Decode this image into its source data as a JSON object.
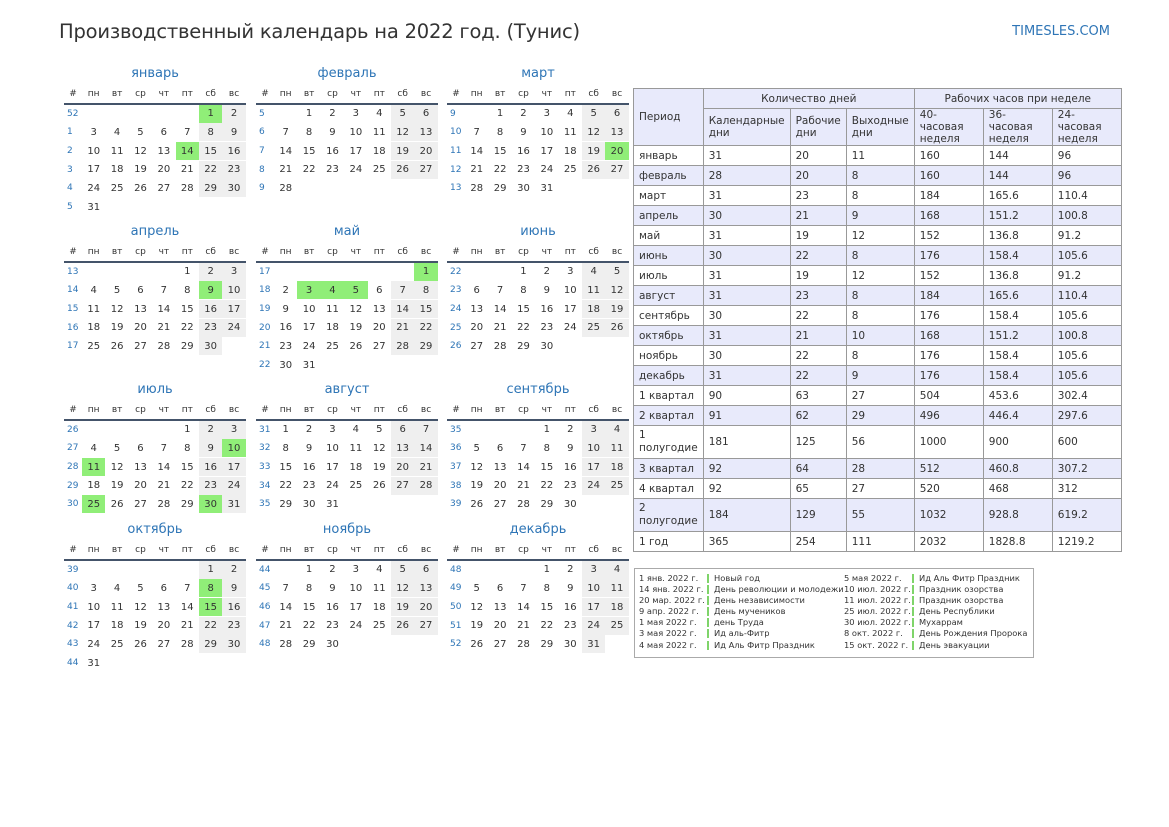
{
  "title": "Производственный календарь на 2022 год. (Тунис)",
  "site": "TIMESLES.COM",
  "weekday_headers": [
    "#",
    "пн",
    "вт",
    "ср",
    "чт",
    "пт",
    "сб",
    "вс"
  ],
  "colors": {
    "accent": "#2e75b6",
    "holiday": "#90ee78",
    "weekend": "#efefef",
    "table_header": "#e8eafb"
  },
  "months": [
    {
      "name": "январь",
      "offset": 5,
      "days": 31,
      "weeks": [
        52,
        1,
        2,
        3,
        4,
        5
      ],
      "holidays": [
        1,
        14
      ]
    },
    {
      "name": "февраль",
      "offset": 1,
      "days": 28,
      "weeks": [
        5,
        6,
        7,
        8,
        9
      ],
      "holidays": []
    },
    {
      "name": "март",
      "offset": 1,
      "days": 31,
      "weeks": [
        9,
        10,
        11,
        12,
        13
      ],
      "holidays": [
        20
      ]
    },
    {
      "name": "апрель",
      "offset": 4,
      "days": 30,
      "weeks": [
        13,
        14,
        15,
        16,
        17
      ],
      "holidays": [
        9
      ]
    },
    {
      "name": "май",
      "offset": 6,
      "days": 31,
      "weeks": [
        17,
        18,
        19,
        20,
        21,
        22
      ],
      "holidays": [
        1,
        3,
        4,
        5
      ]
    },
    {
      "name": "июнь",
      "offset": 2,
      "days": 30,
      "weeks": [
        22,
        23,
        24,
        25,
        26
      ],
      "holidays": []
    },
    {
      "name": "июль",
      "offset": 4,
      "days": 31,
      "weeks": [
        26,
        27,
        28,
        29,
        30
      ],
      "holidays": [
        10,
        11,
        25,
        30
      ]
    },
    {
      "name": "август",
      "offset": 0,
      "days": 31,
      "weeks": [
        31,
        32,
        33,
        34,
        35
      ],
      "holidays": []
    },
    {
      "name": "сентябрь",
      "offset": 3,
      "days": 30,
      "weeks": [
        35,
        36,
        37,
        38,
        39
      ],
      "holidays": []
    },
    {
      "name": "октябрь",
      "offset": 5,
      "days": 31,
      "weeks": [
        39,
        40,
        41,
        42,
        43,
        44
      ],
      "holidays": [
        8,
        15
      ]
    },
    {
      "name": "ноябрь",
      "offset": 1,
      "days": 30,
      "weeks": [
        44,
        45,
        46,
        47,
        48
      ],
      "holidays": []
    },
    {
      "name": "декабрь",
      "offset": 3,
      "days": 31,
      "weeks": [
        48,
        49,
        50,
        51,
        52
      ],
      "holidays": []
    }
  ],
  "table": {
    "period_header": "Период",
    "group_days": "Количество дней",
    "group_hours": "Рабочих часов при неделе",
    "col_headers": [
      "Календарные дни",
      "Рабочие дни",
      "Выходные дни",
      "40-часовая неделя",
      "36-часовая неделя",
      "24-часовая неделя"
    ],
    "rows": [
      {
        "period": "январь",
        "values": [
          "31",
          "20",
          "11",
          "160",
          "144",
          "96"
        ]
      },
      {
        "period": "февраль",
        "values": [
          "28",
          "20",
          "8",
          "160",
          "144",
          "96"
        ]
      },
      {
        "period": "март",
        "values": [
          "31",
          "23",
          "8",
          "184",
          "165.6",
          "110.4"
        ]
      },
      {
        "period": "апрель",
        "values": [
          "30",
          "21",
          "9",
          "168",
          "151.2",
          "100.8"
        ]
      },
      {
        "period": "май",
        "values": [
          "31",
          "19",
          "12",
          "152",
          "136.8",
          "91.2"
        ]
      },
      {
        "period": "июнь",
        "values": [
          "30",
          "22",
          "8",
          "176",
          "158.4",
          "105.6"
        ]
      },
      {
        "period": "июль",
        "values": [
          "31",
          "19",
          "12",
          "152",
          "136.8",
          "91.2"
        ]
      },
      {
        "period": "август",
        "values": [
          "31",
          "23",
          "8",
          "184",
          "165.6",
          "110.4"
        ]
      },
      {
        "period": "сентябрь",
        "values": [
          "30",
          "22",
          "8",
          "176",
          "158.4",
          "105.6"
        ]
      },
      {
        "period": "октябрь",
        "values": [
          "31",
          "21",
          "10",
          "168",
          "151.2",
          "100.8"
        ]
      },
      {
        "period": "ноябрь",
        "values": [
          "30",
          "22",
          "8",
          "176",
          "158.4",
          "105.6"
        ]
      },
      {
        "period": "декабрь",
        "values": [
          "31",
          "22",
          "9",
          "176",
          "158.4",
          "105.6"
        ]
      },
      {
        "period": "1 квартал",
        "values": [
          "90",
          "63",
          "27",
          "504",
          "453.6",
          "302.4"
        ]
      },
      {
        "period": "2 квартал",
        "values": [
          "91",
          "62",
          "29",
          "496",
          "446.4",
          "297.6"
        ]
      },
      {
        "period": "1 полугодие",
        "values": [
          "181",
          "125",
          "56",
          "1000",
          "900",
          "600"
        ]
      },
      {
        "period": "3 квартал",
        "values": [
          "92",
          "64",
          "28",
          "512",
          "460.8",
          "307.2"
        ]
      },
      {
        "period": "4 квартал",
        "values": [
          "92",
          "65",
          "27",
          "520",
          "468",
          "312"
        ]
      },
      {
        "period": "2 полугодие",
        "values": [
          "184",
          "129",
          "55",
          "1032",
          "928.8",
          "619.2"
        ]
      },
      {
        "period": "1 год",
        "values": [
          "365",
          "254",
          "111",
          "2032",
          "1828.8",
          "1219.2"
        ]
      }
    ]
  },
  "holidays": {
    "left": [
      {
        "date": "1 янв. 2022 г.",
        "name": "Новый год"
      },
      {
        "date": "14 янв. 2022 г.",
        "name": "День революции и молодежи"
      },
      {
        "date": "20 мар. 2022 г.",
        "name": "День независимости"
      },
      {
        "date": "9 апр. 2022 г.",
        "name": "День мучеников"
      },
      {
        "date": "1 мая 2022 г.",
        "name": "день Труда"
      },
      {
        "date": "3 мая 2022 г.",
        "name": "Ид аль-Фитр"
      },
      {
        "date": "4 мая 2022 г.",
        "name": "Ид Аль Фитр Праздник"
      }
    ],
    "right": [
      {
        "date": "5 мая 2022 г.",
        "name": "Ид Аль Фитр Праздник"
      },
      {
        "date": "10 июл. 2022 г.",
        "name": "Праздник озорства"
      },
      {
        "date": "11 июл. 2022 г.",
        "name": "Праздник озорства"
      },
      {
        "date": "25 июл. 2022 г.",
        "name": "День Республики"
      },
      {
        "date": "30 июл. 2022 г.",
        "name": "Мухаррам"
      },
      {
        "date": "8 окт. 2022 г.",
        "name": "День Рождения Пророка"
      },
      {
        "date": "15 окт. 2022 г.",
        "name": "День эвакуации"
      }
    ]
  }
}
